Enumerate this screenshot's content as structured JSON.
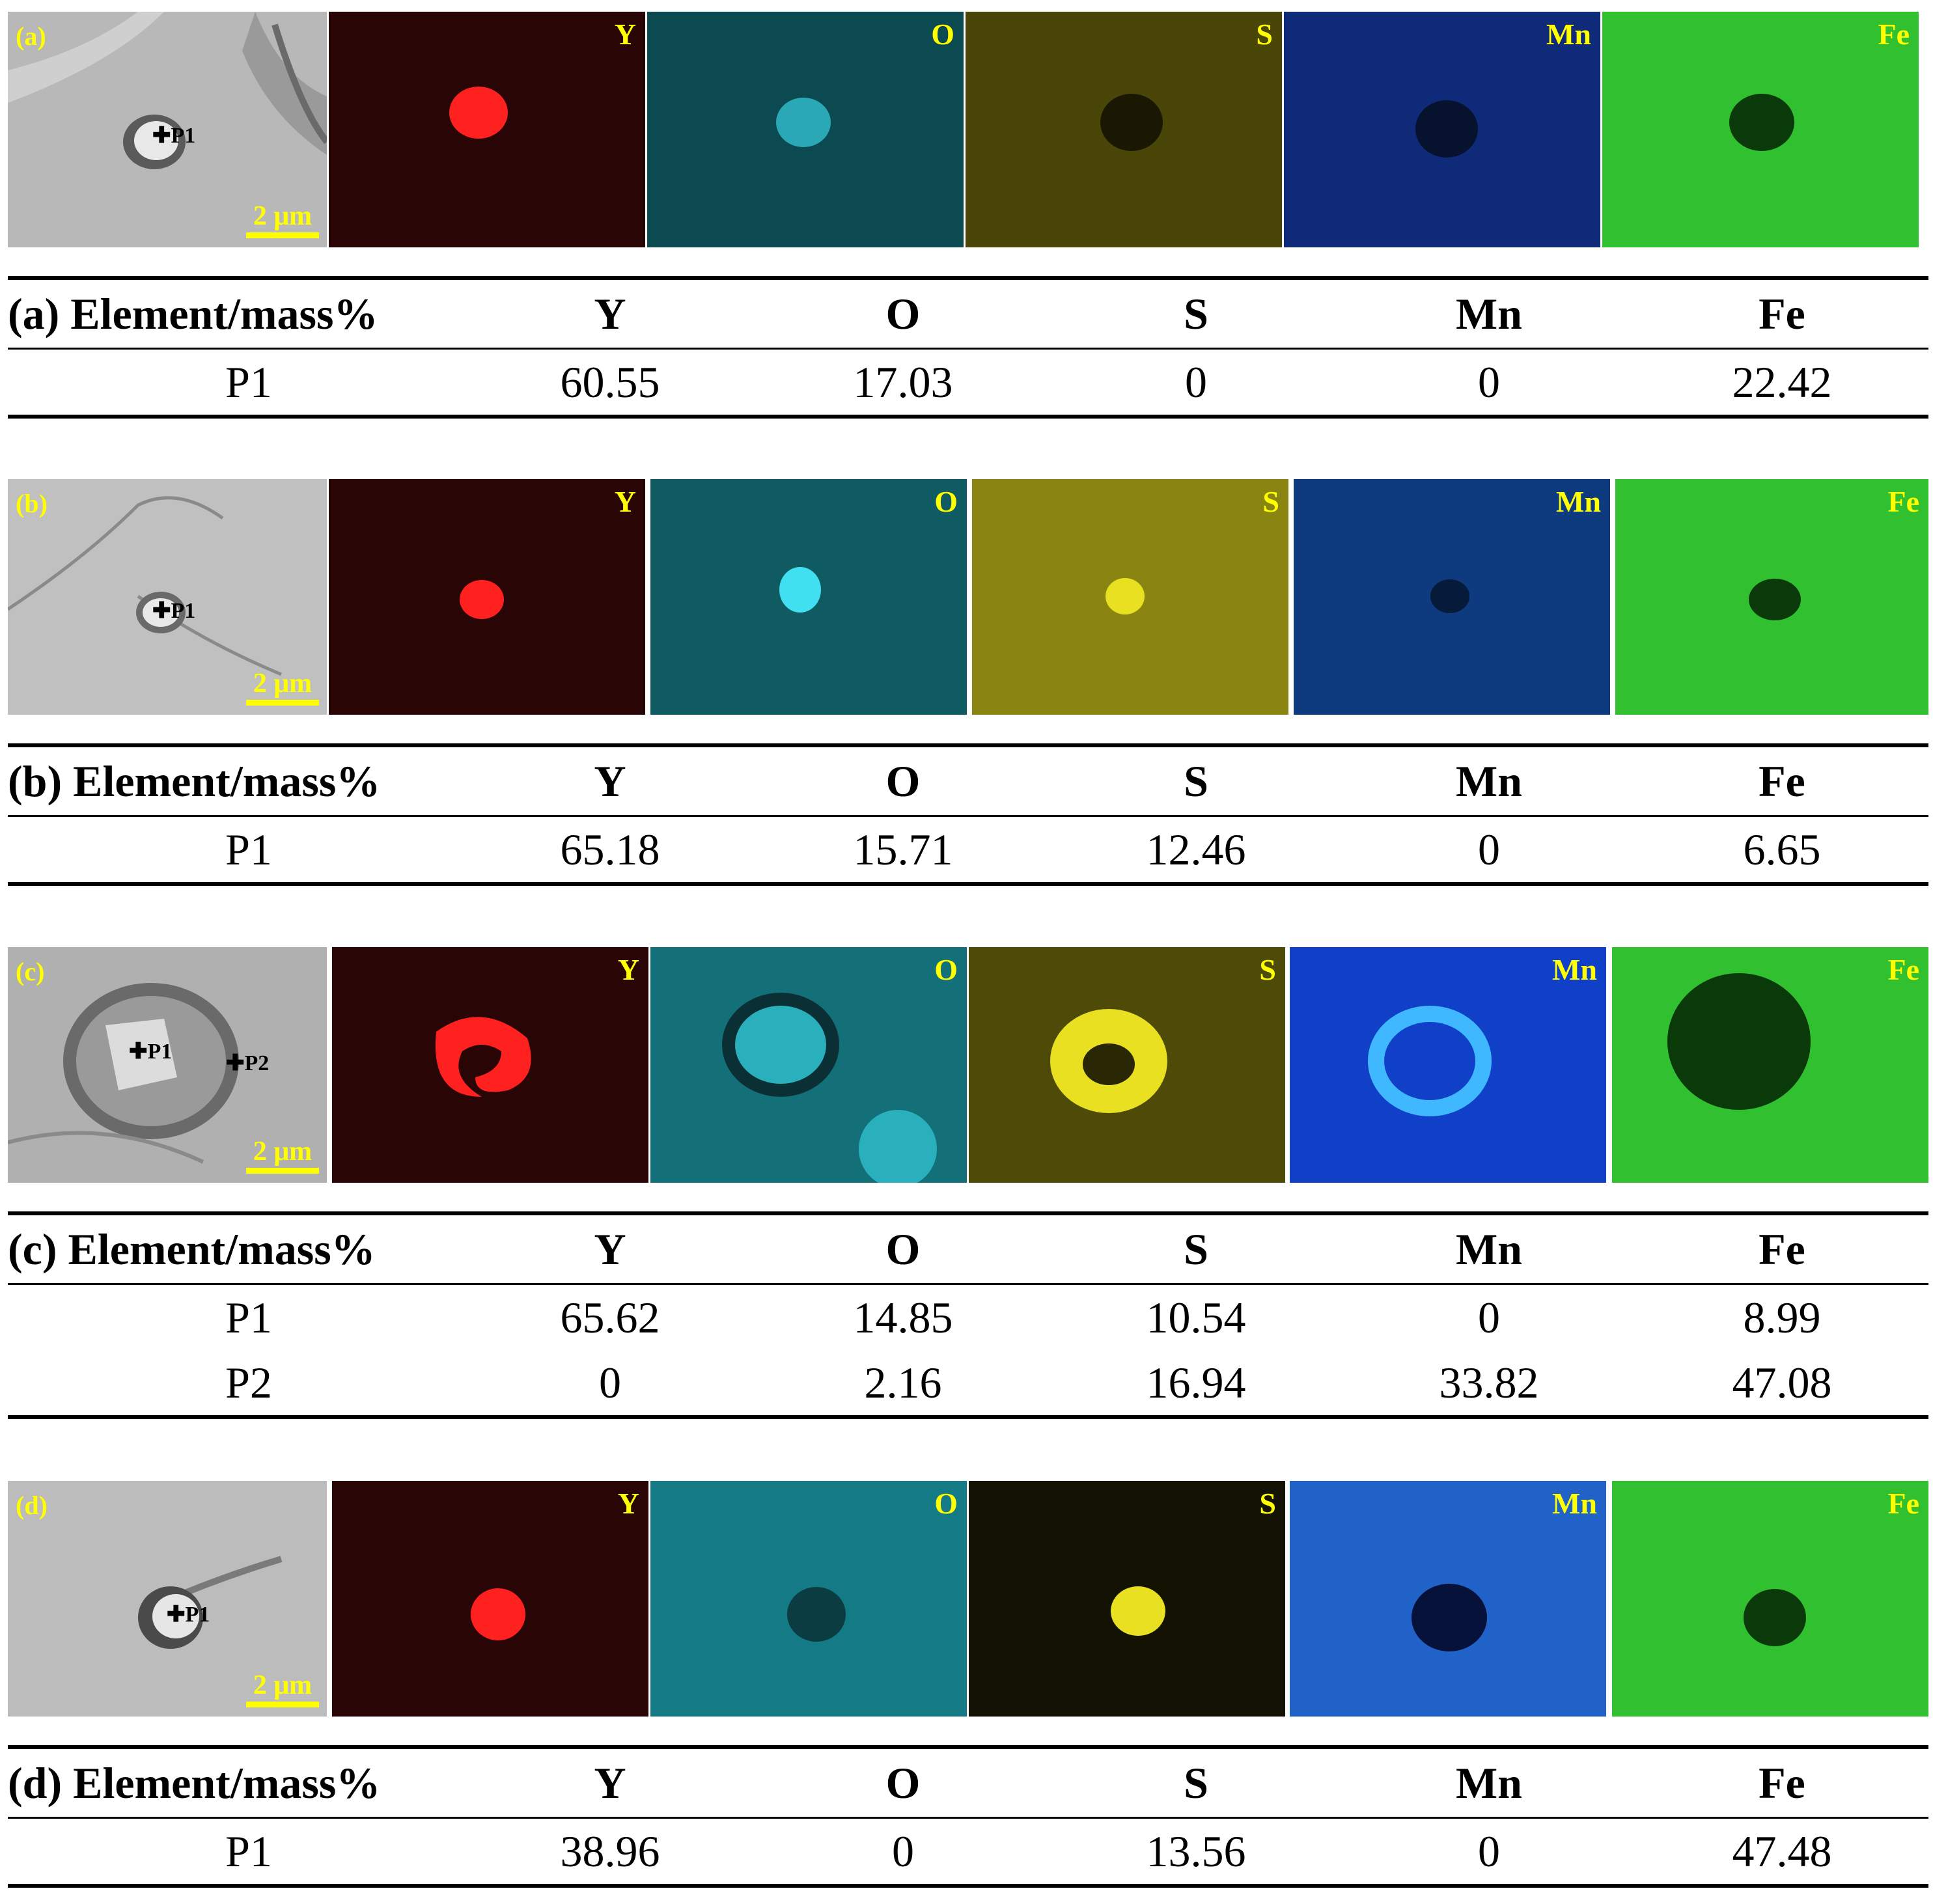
{
  "panels": [
    {
      "id": "a",
      "sem_label": "(a)",
      "scale": "2 μm",
      "points": [
        "P1"
      ],
      "map_labels": [
        "Y",
        "O",
        "S",
        "Mn",
        "Fe"
      ],
      "table": {
        "header": [
          "(a) Element/mass%",
          "Y",
          "O",
          "S",
          "Mn",
          "Fe"
        ],
        "rows": [
          [
            "P1",
            "60.55",
            "17.03",
            "0",
            "0",
            "22.42"
          ]
        ]
      }
    },
    {
      "id": "b",
      "sem_label": "(b)",
      "scale": "2 μm",
      "points": [
        "P1"
      ],
      "map_labels": [
        "Y",
        "O",
        "S",
        "Mn",
        "Fe"
      ],
      "table": {
        "header": [
          "(b) Element/mass%",
          "Y",
          "O",
          "S",
          "Mn",
          "Fe"
        ],
        "rows": [
          [
            "P1",
            "65.18",
            "15.71",
            "12.46",
            "0",
            "6.65"
          ]
        ]
      }
    },
    {
      "id": "c",
      "sem_label": "(c)",
      "scale": "2 μm",
      "points": [
        "P1",
        "P2"
      ],
      "map_labels": [
        "Y",
        "O",
        "S",
        "Mn",
        "Fe"
      ],
      "table": {
        "header": [
          "(c) Element/mass%",
          "Y",
          "O",
          "S",
          "Mn",
          "Fe"
        ],
        "rows": [
          [
            "P1",
            "65.62",
            "14.85",
            "10.54",
            "0",
            "8.99"
          ],
          [
            "P2",
            "0",
            "2.16",
            "16.94",
            "33.82",
            "47.08"
          ]
        ]
      }
    },
    {
      "id": "d",
      "sem_label": "(d)",
      "scale": "2 μm",
      "points": [
        "P1"
      ],
      "map_labels": [
        "Y",
        "O",
        "S",
        "Mn",
        "Fe"
      ],
      "table": {
        "header": [
          "(d) Element/mass%",
          "Y",
          "O",
          "S",
          "Mn",
          "Fe"
        ],
        "rows": [
          [
            "P1",
            "38.96",
            "0",
            "13.56",
            "0",
            "47.48"
          ]
        ]
      }
    }
  ],
  "colors": {
    "Y": "#ff2020",
    "O": "#20d0e0",
    "S": "#e8e020",
    "Mn": "#2060ff",
    "Fe": "#30c030",
    "label": "#ffff00"
  }
}
